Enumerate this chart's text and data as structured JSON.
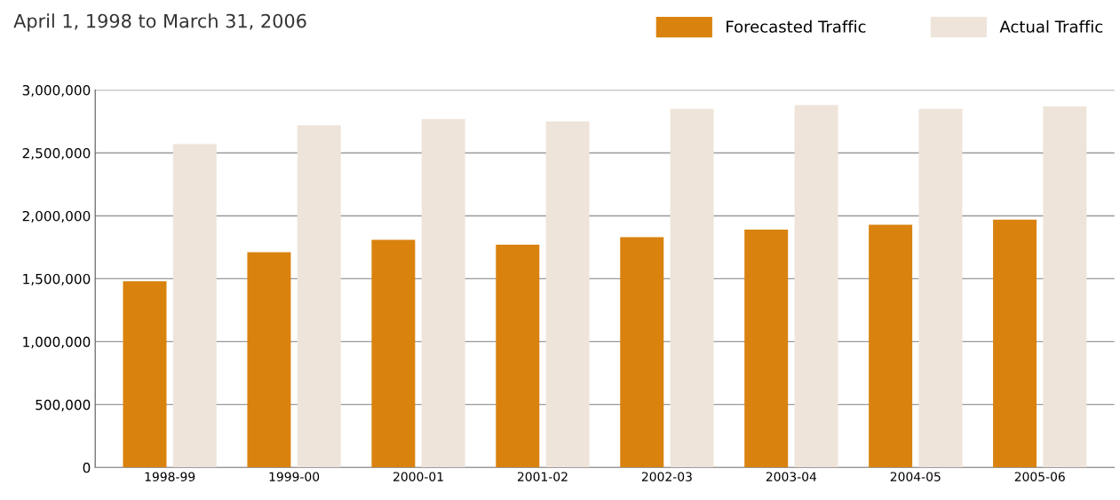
{
  "chart_data": {
    "type": "bar",
    "title": "April 1, 1998 to March 31, 2006",
    "categories": [
      "1998-99",
      "1999-00",
      "2000-01",
      "2001-02",
      "2002-03",
      "2003-04",
      "2004-05",
      "2005-06"
    ],
    "series": [
      {
        "name": "Forecasted Traffic",
        "color": "#d9820e",
        "values": [
          1480000,
          1710000,
          1810000,
          1770000,
          1830000,
          1890000,
          1930000,
          1970000
        ]
      },
      {
        "name": "Actual Traffic",
        "color": "#efe4da",
        "values": [
          2570000,
          2720000,
          2770000,
          2750000,
          2850000,
          2880000,
          2850000,
          2870000
        ]
      }
    ],
    "ylim": [
      0,
      3000000
    ],
    "yticks": [
      {
        "value": 0,
        "label": "0"
      },
      {
        "value": 500000,
        "label": "500,000"
      },
      {
        "value": 1000000,
        "label": "1,000,000"
      },
      {
        "value": 1500000,
        "label": "1,500,000"
      },
      {
        "value": 2000000,
        "label": "2,000,000"
      },
      {
        "value": 2500000,
        "label": "2,500,000"
      },
      {
        "value": 3000000,
        "label": "3,000,000"
      }
    ],
    "grid": "y",
    "legend": "top right"
  }
}
